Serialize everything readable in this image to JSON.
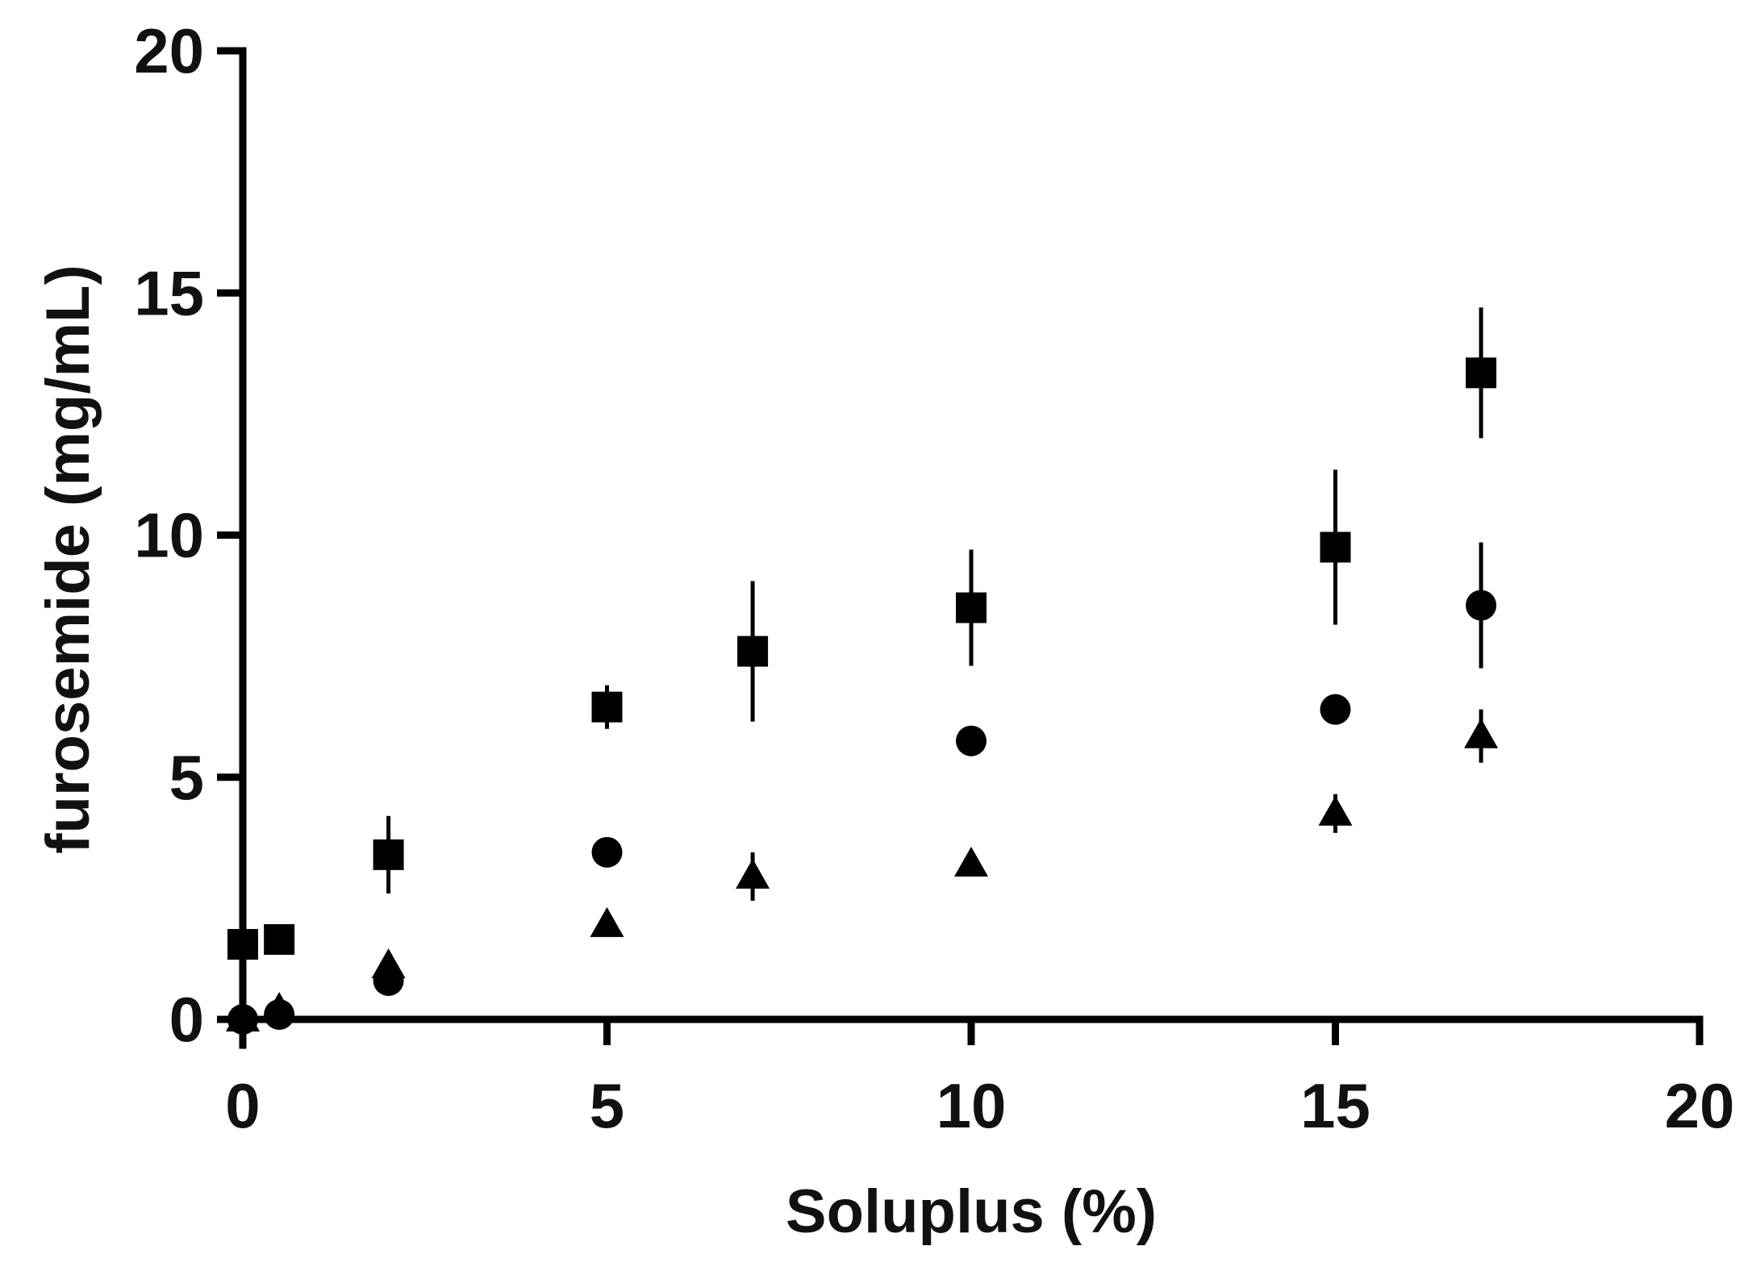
{
  "chart_data": {
    "type": "scatter",
    "title": "",
    "xlabel": "Soluplus (%)",
    "ylabel": "furosemide (mg/mL)",
    "xlim": [
      0,
      20
    ],
    "ylim": [
      0,
      20
    ],
    "xticks": [
      0,
      5,
      10,
      15,
      20
    ],
    "yticks": [
      0,
      5,
      10,
      15,
      20
    ],
    "grid": false,
    "legend": "none",
    "color": "#000000",
    "series": [
      {
        "marker": "square",
        "points": [
          {
            "x": 0,
            "y": 1.55,
            "err": 0
          },
          {
            "x": 0.5,
            "y": 1.65,
            "err": 0
          },
          {
            "x": 2,
            "y": 3.4,
            "err": 0.8
          },
          {
            "x": 5,
            "y": 6.45,
            "err": 0.45
          },
          {
            "x": 7,
            "y": 7.6,
            "err": 1.45
          },
          {
            "x": 10,
            "y": 8.5,
            "err": 1.2
          },
          {
            "x": 15,
            "y": 9.75,
            "err": 1.6
          },
          {
            "x": 17,
            "y": 13.35,
            "err": 1.35
          }
        ]
      },
      {
        "marker": "circle",
        "points": [
          {
            "x": 0,
            "y": 0.0,
            "err": 0
          },
          {
            "x": 0.5,
            "y": 0.1,
            "err": 0
          },
          {
            "x": 2,
            "y": 0.8,
            "err": 0
          },
          {
            "x": 5,
            "y": 3.45,
            "err": 0
          },
          {
            "x": 10,
            "y": 5.75,
            "err": 0
          },
          {
            "x": 15,
            "y": 6.4,
            "err": 0
          },
          {
            "x": 17,
            "y": 8.55,
            "err": 1.3
          }
        ]
      },
      {
        "marker": "triangle",
        "points": [
          {
            "x": 0,
            "y": 0.0,
            "err": 0
          },
          {
            "x": 0.5,
            "y": 0.2,
            "err": 0
          },
          {
            "x": 2,
            "y": 1.1,
            "err": 0
          },
          {
            "x": 5,
            "y": 1.95,
            "err": 0
          },
          {
            "x": 7,
            "y": 2.95,
            "err": 0.5
          },
          {
            "x": 10,
            "y": 3.2,
            "err": 0
          },
          {
            "x": 15,
            "y": 4.25,
            "err": 0.4
          },
          {
            "x": 17,
            "y": 5.85,
            "err": 0.55
          }
        ]
      }
    ]
  }
}
